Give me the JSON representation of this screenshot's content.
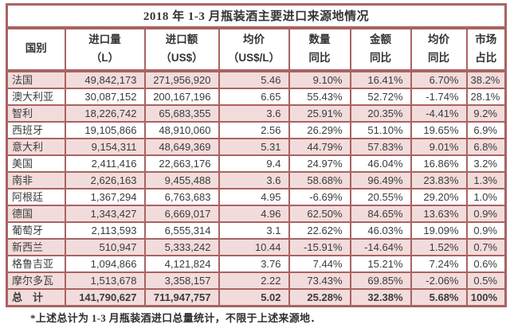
{
  "title": "2018 年 1-3 月瓶装酒主要进口来源地情况",
  "columns": [
    {
      "key": "country",
      "label": "国别"
    },
    {
      "key": "import_volume",
      "label": "进口量\n（L）"
    },
    {
      "key": "import_value",
      "label": "进口额\n（US$）"
    },
    {
      "key": "avg_price",
      "label": "均价\n（US$/L）"
    },
    {
      "key": "volume_yoy",
      "label": "数量\n同比"
    },
    {
      "key": "value_yoy",
      "label": "金额\n同比"
    },
    {
      "key": "price_yoy",
      "label": "均价\n同比"
    },
    {
      "key": "market_share",
      "label": "市场\n占比"
    }
  ],
  "rows": [
    {
      "band": "pink",
      "bold": false,
      "cells": [
        "法国",
        "49,842,173",
        "271,956,920",
        "5.46",
        "9.10%",
        "16.41%",
        "6.70%",
        "38.2%"
      ]
    },
    {
      "band": "white",
      "bold": false,
      "cells": [
        "澳大利亚",
        "30,087,152",
        "200,167,196",
        "6.65",
        "55.43%",
        "52.72%",
        "-1.74%",
        "28.1%"
      ]
    },
    {
      "band": "pink",
      "bold": false,
      "cells": [
        "智利",
        "18,226,742",
        "65,683,355",
        "3.6",
        "25.91%",
        "20.35%",
        "-4.41%",
        "9.2%"
      ]
    },
    {
      "band": "white",
      "bold": false,
      "cells": [
        "西班牙",
        "19,105,866",
        "48,910,060",
        "2.56",
        "26.29%",
        "51.10%",
        "19.65%",
        "6.9%"
      ]
    },
    {
      "band": "pink",
      "bold": false,
      "cells": [
        "意大利",
        "9,154,311",
        "48,649,369",
        "5.31",
        "44.79%",
        "57.83%",
        "9.01%",
        "6.8%"
      ]
    },
    {
      "band": "white",
      "bold": false,
      "cells": [
        "美国",
        "2,411,416",
        "22,663,176",
        "9.4",
        "24.97%",
        "46.04%",
        "16.86%",
        "3.2%"
      ]
    },
    {
      "band": "pink",
      "bold": false,
      "cells": [
        "南非",
        "2,626,163",
        "9,455,488",
        "3.6",
        "58.68%",
        "96.49%",
        "23.83%",
        "1.3%"
      ]
    },
    {
      "band": "white",
      "bold": false,
      "cells": [
        "阿根廷",
        "1,367,294",
        "6,763,683",
        "4.95",
        "-6.69%",
        "20.55%",
        "29.20%",
        "1.0%"
      ]
    },
    {
      "band": "pink",
      "bold": false,
      "cells": [
        "德国",
        "1,343,427",
        "6,669,017",
        "4.96",
        "62.50%",
        "84.65%",
        "13.63%",
        "0.9%"
      ]
    },
    {
      "band": "white",
      "bold": false,
      "cells": [
        "葡萄牙",
        "2,113,593",
        "6,555,314",
        "3.1",
        "22.62%",
        "46.03%",
        "19.09%",
        "0.9%"
      ]
    },
    {
      "band": "pink",
      "bold": false,
      "cells": [
        "新西兰",
        "510,947",
        "5,333,242",
        "10.44",
        "-15.91%",
        "-14.64%",
        "1.52%",
        "0.7%"
      ]
    },
    {
      "band": "white",
      "bold": false,
      "cells": [
        "格鲁吉亚",
        "1,094,866",
        "4,121,824",
        "3.76",
        "7.44%",
        "15.21%",
        "7.24%",
        "0.6%"
      ]
    },
    {
      "band": "pink",
      "bold": false,
      "cells": [
        "摩尔多瓦",
        "1,513,678",
        "3,358,157",
        "2.22",
        "73.43%",
        "69.85%",
        "-2.06%",
        "0.5%"
      ]
    },
    {
      "band": "pink",
      "bold": true,
      "cells": [
        "总　计",
        "141,790,627",
        "711,947,757",
        "5.02",
        "25.28%",
        "32.38%",
        "5.68%",
        "100%"
      ]
    }
  ],
  "footnote": "*上述总计为 1-3 月瓶装酒进口总量统计，不限于上述来源地．",
  "colors": {
    "border": "#a86361",
    "row_pink": "#f2dcdb",
    "row_white": "#ffffff",
    "text": "#3b3b3b"
  }
}
